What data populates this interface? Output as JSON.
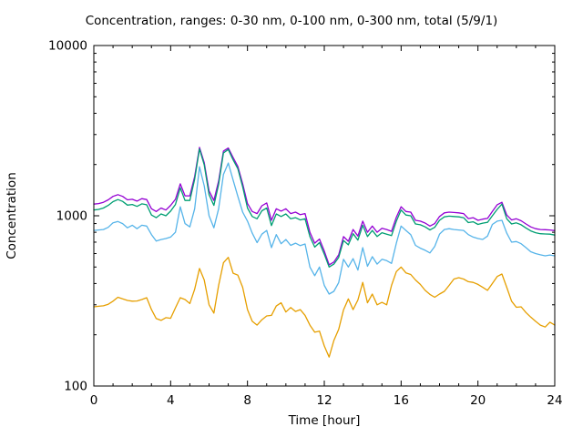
{
  "chart_data": {
    "type": "line",
    "title": "Concentration, ranges: 0-30 nm, 0-100 nm, 0-300 nm, total (5/9/1)",
    "xlabel": "Time [hour]",
    "ylabel": "Concentration",
    "xlim": [
      0,
      24
    ],
    "ylim": [
      100,
      10000
    ],
    "yscale": "log",
    "grid": false,
    "legend": "none",
    "x_major_ticks": [
      0,
      4,
      8,
      12,
      16,
      20,
      24
    ],
    "x_minor_step": 1,
    "y_major_ticks": [
      100,
      1000,
      10000
    ],
    "y_tick_labels": [
      "100",
      "1000",
      "10000"
    ],
    "x_step": 0.25,
    "series": [
      {
        "name": "0-30 nm",
        "color": "#e69f00",
        "values": [
          292,
          294,
          296,
          302,
          315,
          332,
          325,
          318,
          315,
          316,
          322,
          330,
          281,
          249,
          243,
          252,
          250,
          288,
          330,
          322,
          305,
          370,
          490,
          420,
          300,
          268,
          390,
          530,
          570,
          460,
          448,
          380,
          281,
          240,
          228,
          245,
          258,
          260,
          295,
          308,
          272,
          289,
          274,
          281,
          260,
          228,
          207,
          210,
          172,
          148,
          185,
          215,
          280,
          325,
          281,
          320,
          406,
          308,
          347,
          300,
          310,
          300,
          390,
          470,
          500,
          462,
          452,
          420,
          395,
          365,
          345,
          332,
          347,
          360,
          390,
          425,
          433,
          425,
          410,
          406,
          395,
          380,
          365,
          400,
          440,
          455,
          380,
          315,
          290,
          292,
          270,
          254,
          240,
          228,
          222,
          237,
          228
        ]
      },
      {
        "name": "0-100 nm",
        "color": "#56b4e9",
        "values": [
          820,
          825,
          830,
          855,
          910,
          925,
          900,
          850,
          880,
          840,
          880,
          870,
          775,
          710,
          725,
          735,
          750,
          800,
          1130,
          900,
          860,
          1100,
          1940,
          1500,
          1000,
          850,
          1100,
          1750,
          2040,
          1620,
          1300,
          1050,
          930,
          790,
          695,
          780,
          820,
          650,
          775,
          685,
          725,
          670,
          690,
          668,
          683,
          500,
          445,
          500,
          390,
          347,
          360,
          405,
          555,
          500,
          560,
          480,
          650,
          505,
          575,
          520,
          555,
          545,
          525,
          690,
          870,
          820,
          775,
          670,
          645,
          627,
          605,
          660,
          780,
          830,
          840,
          830,
          825,
          820,
          775,
          750,
          735,
          726,
          760,
          890,
          930,
          940,
          790,
          700,
          706,
          685,
          650,
          615,
          600,
          590,
          582,
          588,
          582
        ]
      },
      {
        "name": "0-300 nm",
        "color": "#009e73",
        "values": [
          1080,
          1090,
          1110,
          1150,
          1210,
          1245,
          1215,
          1155,
          1165,
          1135,
          1175,
          1160,
          1010,
          975,
          1025,
          1000,
          1065,
          1165,
          1460,
          1230,
          1230,
          1640,
          2470,
          1990,
          1330,
          1150,
          1530,
          2340,
          2450,
          2130,
          1890,
          1480,
          1110,
          990,
          960,
          1070,
          1110,
          875,
          1025,
          990,
          1025,
          960,
          975,
          945,
          960,
          755,
          655,
          695,
          595,
          500,
          520,
          570,
          715,
          675,
          785,
          720,
          880,
          755,
          820,
          755,
          795,
          780,
          765,
          930,
          1080,
          1010,
          1000,
          895,
          885,
          860,
          825,
          855,
          940,
          985,
          995,
          990,
          985,
          975,
          912,
          922,
          890,
          905,
          915,
          1000,
          1090,
          1170,
          960,
          895,
          908,
          885,
          848,
          815,
          795,
          785,
          782,
          780,
          770
        ]
      },
      {
        "name": "total",
        "color": "#9400d3",
        "values": [
          1170,
          1180,
          1200,
          1240,
          1300,
          1330,
          1300,
          1240,
          1250,
          1220,
          1260,
          1245,
          1100,
          1060,
          1110,
          1080,
          1150,
          1250,
          1540,
          1310,
          1310,
          1700,
          2520,
          2050,
          1400,
          1230,
          1600,
          2400,
          2500,
          2200,
          1950,
          1540,
          1180,
          1060,
          1030,
          1145,
          1190,
          940,
          1100,
          1065,
          1100,
          1030,
          1050,
          1015,
          1030,
          800,
          690,
          730,
          620,
          515,
          535,
          590,
          754,
          708,
          830,
          760,
          930,
          800,
          870,
          800,
          845,
          830,
          810,
          980,
          1130,
          1060,
          1050,
          940,
          930,
          906,
          870,
          900,
          990,
          1040,
          1050,
          1045,
          1040,
          1030,
          963,
          975,
          940,
          955,
          965,
          1060,
          1160,
          1200,
          1010,
          945,
          960,
          935,
          895,
          860,
          840,
          830,
          828,
          825,
          818
        ]
      }
    ]
  }
}
